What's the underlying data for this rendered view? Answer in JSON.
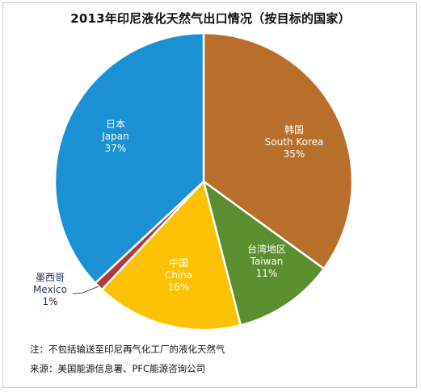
{
  "chart_data": {
    "type": "pie",
    "title": "2013年印尼液化天然气出口情况（按目标的国家）",
    "slices": [
      {
        "label_cn": "韩国",
        "label_en": "South Korea",
        "value": 35,
        "pct_text": "35%",
        "color": "#b86f2c"
      },
      {
        "label_cn": "台湾地区",
        "label_en": "Taiwan",
        "value": 11,
        "pct_text": "11%",
        "color": "#5b8e2e"
      },
      {
        "label_cn": "中国",
        "label_en": "China",
        "value": 16,
        "pct_text": "16%",
        "color": "#fbc102"
      },
      {
        "label_cn": "墨西哥",
        "label_en": "Mexico",
        "value": 1,
        "pct_text": "1%",
        "color": "#b03a3f"
      },
      {
        "label_cn": "日本",
        "label_en": "Japan",
        "value": 37,
        "pct_text": "37%",
        "color": "#1b90d3"
      }
    ],
    "start_angle_deg": 0,
    "direction": "clockwise"
  },
  "notes": {
    "note": "注：不包括输送至印尼再气化工厂的液化天然气",
    "source": "来源：美国能源信息署、PFC能源咨询公司"
  }
}
